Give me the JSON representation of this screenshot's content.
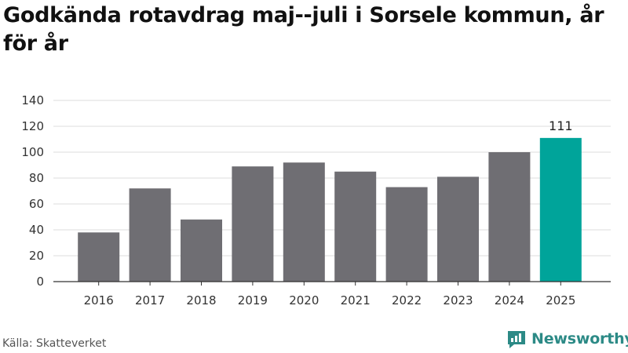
{
  "title": "Godkända rotavdrag maj--juli i Sorsele kommun, år för år",
  "source": "Källa: Skatteverket",
  "brand": {
    "name": "Newsworthy",
    "icon": "newsworthy-logo-icon"
  },
  "colors": {
    "bar": "#6f6e73",
    "highlight": "#00a49a",
    "grid": "#dddddd",
    "axis": "#333333",
    "brand": "#2c8a86"
  },
  "chart_data": {
    "type": "bar",
    "title": "Godkända rotavdrag maj--juli i Sorsele kommun, år för år",
    "categories": [
      "2016",
      "2017",
      "2018",
      "2019",
      "2020",
      "2021",
      "2022",
      "2023",
      "2024",
      "2025"
    ],
    "values": [
      38,
      72,
      48,
      89,
      92,
      85,
      73,
      81,
      100,
      111
    ],
    "highlight_index": 9,
    "data_labels": [
      {
        "index": 9,
        "text": "111"
      }
    ],
    "ylim": [
      0,
      140
    ],
    "yticks": [
      0,
      20,
      40,
      60,
      80,
      100,
      120,
      140
    ],
    "grid": true,
    "xlabel": "",
    "ylabel": ""
  }
}
